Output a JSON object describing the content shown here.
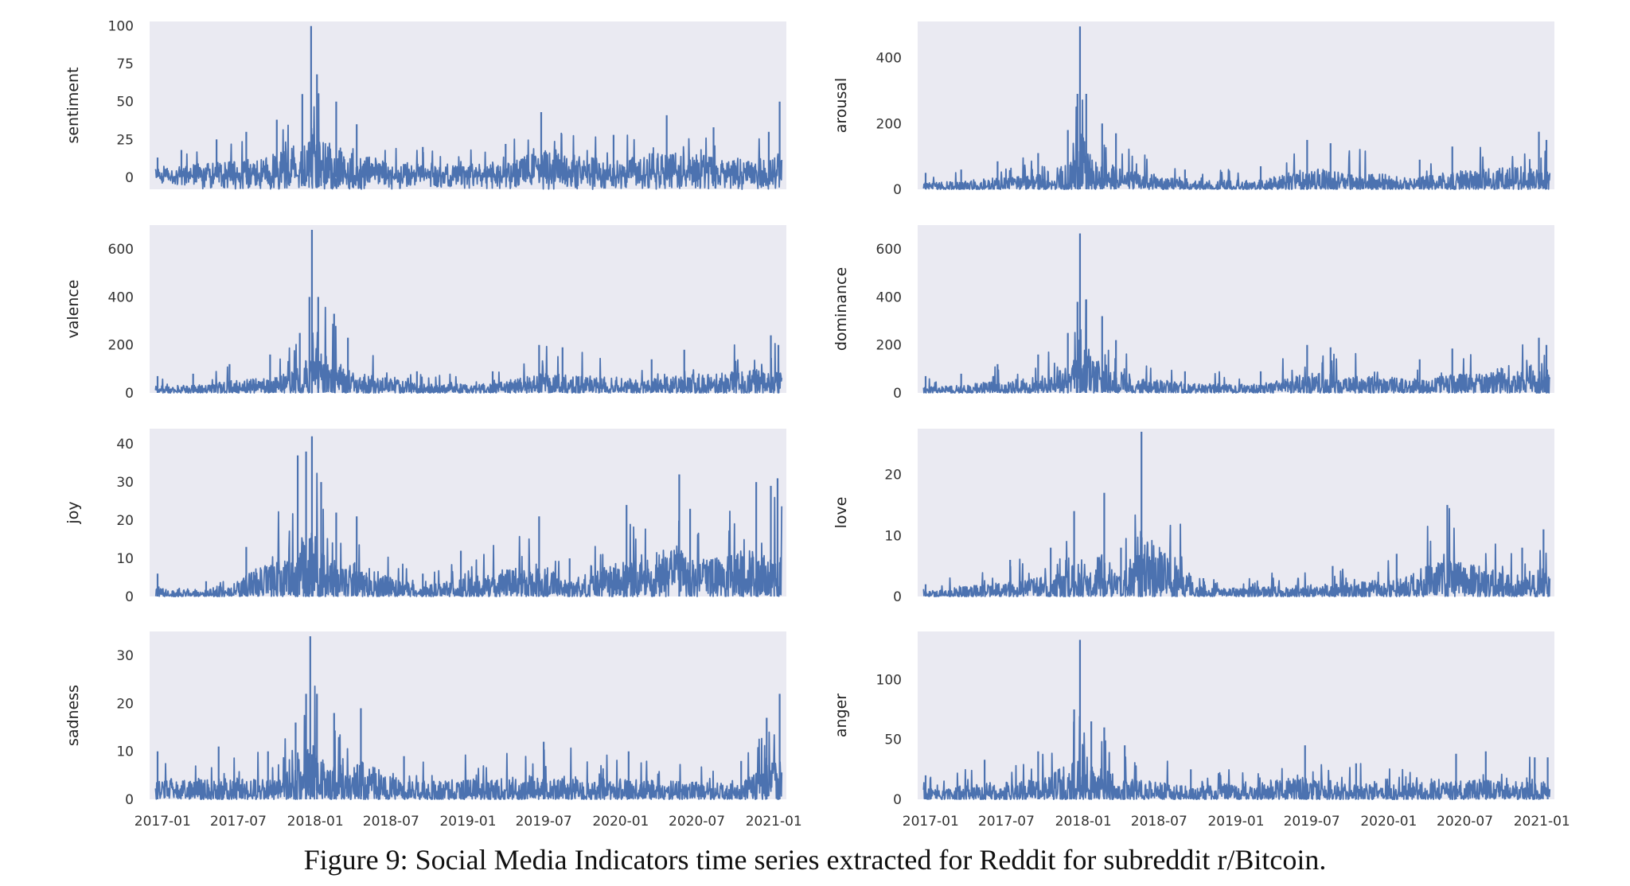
{
  "caption": "Figure 9: Social Media Indicators time series extracted for Reddit for subreddit r/Bitcoin.",
  "colors": {
    "series": "#4c72b0",
    "panel_bg": "#eaeaf2"
  },
  "x_axis": {
    "range": [
      "2016-12-01",
      "2021-01-31"
    ],
    "data_range": [
      "2016-12-15",
      "2021-01-20"
    ],
    "ticks": [
      "2017-01",
      "2017-07",
      "2018-01",
      "2018-07",
      "2019-01",
      "2019-07",
      "2020-01",
      "2020-07",
      "2021-01"
    ],
    "tick_dates": [
      "2017-01-01",
      "2017-07-01",
      "2018-01-01",
      "2018-07-01",
      "2019-01-01",
      "2019-07-01",
      "2020-01-01",
      "2020-07-01",
      "2021-01-01"
    ]
  },
  "chart_data": [
    {
      "type": "line",
      "ylabel": "sentiment",
      "ylim": [
        -8,
        103
      ],
      "yticks": [
        0,
        25,
        50,
        75,
        100
      ],
      "grid": false,
      "legend": false,
      "series": [
        {
          "name": "",
          "points": [
            {
              "x": "2016-12-20",
              "y": 13
            },
            {
              "x": "2017-02-15",
              "y": 18
            },
            {
              "x": "2017-05-10",
              "y": 25
            },
            {
              "x": "2017-07-20",
              "y": 30
            },
            {
              "x": "2017-10-01",
              "y": 38
            },
            {
              "x": "2017-12-01",
              "y": 55
            },
            {
              "x": "2017-12-22",
              "y": 100
            },
            {
              "x": "2018-01-05",
              "y": 68
            },
            {
              "x": "2018-02-20",
              "y": 50
            },
            {
              "x": "2018-04-10",
              "y": 35
            },
            {
              "x": "2018-09-15",
              "y": 20
            },
            {
              "x": "2019-04-01",
              "y": 22
            },
            {
              "x": "2019-06-25",
              "y": 43
            },
            {
              "x": "2019-12-15",
              "y": 28
            },
            {
              "x": "2020-04-20",
              "y": 41
            },
            {
              "x": "2020-08-10",
              "y": 33
            },
            {
              "x": "2020-12-20",
              "y": 30
            },
            {
              "x": "2021-01-15",
              "y": 50
            }
          ]
        }
      ]
    },
    {
      "type": "line",
      "ylabel": "arousal",
      "ylim": [
        0,
        510
      ],
      "yticks": [
        0,
        200,
        400
      ],
      "grid": false,
      "legend": false,
      "series": [
        {
          "name": "",
          "points": [
            {
              "x": "2016-12-20",
              "y": 50
            },
            {
              "x": "2017-03-15",
              "y": 60
            },
            {
              "x": "2017-06-10",
              "y": 85
            },
            {
              "x": "2017-09-15",
              "y": 110
            },
            {
              "x": "2017-11-25",
              "y": 180
            },
            {
              "x": "2017-12-18",
              "y": 290
            },
            {
              "x": "2017-12-24",
              "y": 495
            },
            {
              "x": "2018-01-08",
              "y": 290
            },
            {
              "x": "2018-02-15",
              "y": 200
            },
            {
              "x": "2018-03-20",
              "y": 170
            },
            {
              "x": "2018-09-01",
              "y": 60
            },
            {
              "x": "2019-03-01",
              "y": 70
            },
            {
              "x": "2019-06-20",
              "y": 150
            },
            {
              "x": "2019-08-15",
              "y": 140
            },
            {
              "x": "2020-03-15",
              "y": 90
            },
            {
              "x": "2020-06-01",
              "y": 130
            },
            {
              "x": "2020-12-25",
              "y": 175
            },
            {
              "x": "2021-01-12",
              "y": 150
            }
          ]
        }
      ]
    },
    {
      "type": "line",
      "ylabel": "valence",
      "ylim": [
        0,
        700
      ],
      "yticks": [
        0,
        200,
        400,
        600
      ],
      "grid": false,
      "legend": false,
      "series": [
        {
          "name": "",
          "points": [
            {
              "x": "2016-12-20",
              "y": 70
            },
            {
              "x": "2017-03-15",
              "y": 80
            },
            {
              "x": "2017-06-10",
              "y": 120
            },
            {
              "x": "2017-09-15",
              "y": 160
            },
            {
              "x": "2017-11-25",
              "y": 250
            },
            {
              "x": "2017-12-18",
              "y": 400
            },
            {
              "x": "2017-12-24",
              "y": 680
            },
            {
              "x": "2018-01-08",
              "y": 400
            },
            {
              "x": "2018-02-15",
              "y": 330
            },
            {
              "x": "2018-03-20",
              "y": 230
            },
            {
              "x": "2018-09-01",
              "y": 90
            },
            {
              "x": "2019-03-01",
              "y": 90
            },
            {
              "x": "2019-06-20",
              "y": 200
            },
            {
              "x": "2019-08-15",
              "y": 190
            },
            {
              "x": "2020-03-15",
              "y": 140
            },
            {
              "x": "2020-06-01",
              "y": 180
            },
            {
              "x": "2020-12-25",
              "y": 240
            },
            {
              "x": "2021-01-12",
              "y": 200
            }
          ]
        }
      ]
    },
    {
      "type": "line",
      "ylabel": "dominance",
      "ylim": [
        0,
        700
      ],
      "yticks": [
        0,
        200,
        400,
        600
      ],
      "grid": false,
      "legend": false,
      "series": [
        {
          "name": "",
          "points": [
            {
              "x": "2016-12-20",
              "y": 70
            },
            {
              "x": "2017-03-15",
              "y": 80
            },
            {
              "x": "2017-06-10",
              "y": 120
            },
            {
              "x": "2017-09-15",
              "y": 160
            },
            {
              "x": "2017-11-25",
              "y": 250
            },
            {
              "x": "2017-12-18",
              "y": 380
            },
            {
              "x": "2017-12-24",
              "y": 665
            },
            {
              "x": "2018-01-08",
              "y": 390
            },
            {
              "x": "2018-02-15",
              "y": 320
            },
            {
              "x": "2018-03-20",
              "y": 220
            },
            {
              "x": "2018-09-01",
              "y": 90
            },
            {
              "x": "2019-03-01",
              "y": 90
            },
            {
              "x": "2019-06-20",
              "y": 200
            },
            {
              "x": "2019-08-15",
              "y": 190
            },
            {
              "x": "2020-03-15",
              "y": 140
            },
            {
              "x": "2020-06-01",
              "y": 185
            },
            {
              "x": "2020-12-25",
              "y": 230
            },
            {
              "x": "2021-01-12",
              "y": 200
            }
          ]
        }
      ]
    },
    {
      "type": "line",
      "ylabel": "joy",
      "ylim": [
        0,
        44
      ],
      "yticks": [
        0,
        10,
        20,
        30,
        40
      ],
      "grid": false,
      "legend": false,
      "series": [
        {
          "name": "",
          "points": [
            {
              "x": "2016-12-20",
              "y": 6
            },
            {
              "x": "2017-04-15",
              "y": 4
            },
            {
              "x": "2017-07-20",
              "y": 13
            },
            {
              "x": "2017-11-20",
              "y": 37
            },
            {
              "x": "2017-12-10",
              "y": 38
            },
            {
              "x": "2017-12-24",
              "y": 42
            },
            {
              "x": "2018-01-15",
              "y": 30
            },
            {
              "x": "2018-02-20",
              "y": 22
            },
            {
              "x": "2018-04-10",
              "y": 21
            },
            {
              "x": "2018-09-15",
              "y": 6
            },
            {
              "x": "2018-12-15",
              "y": 12
            },
            {
              "x": "2019-06-20",
              "y": 21
            },
            {
              "x": "2019-09-01",
              "y": 10
            },
            {
              "x": "2020-01-15",
              "y": 24
            },
            {
              "x": "2020-05-20",
              "y": 32
            },
            {
              "x": "2020-06-15",
              "y": 23
            },
            {
              "x": "2020-11-20",
              "y": 30
            },
            {
              "x": "2020-12-25",
              "y": 29
            },
            {
              "x": "2021-01-10",
              "y": 31
            }
          ]
        }
      ]
    },
    {
      "type": "line",
      "ylabel": "love",
      "ylim": [
        0,
        27.5
      ],
      "yticks": [
        0,
        10,
        20
      ],
      "grid": false,
      "legend": false,
      "series": [
        {
          "name": "",
          "points": [
            {
              "x": "2016-12-20",
              "y": 2
            },
            {
              "x": "2017-07-10",
              "y": 6
            },
            {
              "x": "2017-10-15",
              "y": 8
            },
            {
              "x": "2017-12-10",
              "y": 14
            },
            {
              "x": "2018-02-20",
              "y": 17
            },
            {
              "x": "2018-04-01",
              "y": 8
            },
            {
              "x": "2018-05-20",
              "y": 27
            },
            {
              "x": "2018-10-15",
              "y": 3
            },
            {
              "x": "2019-08-20",
              "y": 5
            },
            {
              "x": "2020-01-20",
              "y": 7
            },
            {
              "x": "2020-05-20",
              "y": 15
            },
            {
              "x": "2020-11-15",
              "y": 8
            },
            {
              "x": "2021-01-05",
              "y": 11
            }
          ]
        }
      ]
    },
    {
      "type": "line",
      "ylabel": "sadness",
      "ylim": [
        0,
        35
      ],
      "yticks": [
        0,
        10,
        20,
        30
      ],
      "grid": false,
      "legend": false,
      "series": [
        {
          "name": "",
          "points": [
            {
              "x": "2016-12-20",
              "y": 10
            },
            {
              "x": "2017-05-15",
              "y": 11
            },
            {
              "x": "2017-09-10",
              "y": 10
            },
            {
              "x": "2017-11-15",
              "y": 16
            },
            {
              "x": "2017-12-10",
              "y": 22
            },
            {
              "x": "2017-12-20",
              "y": 34
            },
            {
              "x": "2018-01-05",
              "y": 22
            },
            {
              "x": "2018-02-15",
              "y": 18
            },
            {
              "x": "2018-04-20",
              "y": 19
            },
            {
              "x": "2018-08-01",
              "y": 9
            },
            {
              "x": "2019-07-01",
              "y": 12
            },
            {
              "x": "2020-01-20",
              "y": 10
            },
            {
              "x": "2020-10-15",
              "y": 8
            },
            {
              "x": "2020-12-15",
              "y": 17
            },
            {
              "x": "2021-01-15",
              "y": 22
            }
          ]
        }
      ]
    },
    {
      "type": "line",
      "ylabel": "anger",
      "ylim": [
        0,
        140
      ],
      "yticks": [
        0,
        50,
        100
      ],
      "grid": false,
      "legend": false,
      "series": [
        {
          "name": "",
          "points": [
            {
              "x": "2016-12-20",
              "y": 20
            },
            {
              "x": "2017-05-10",
              "y": 33
            },
            {
              "x": "2017-09-15",
              "y": 40
            },
            {
              "x": "2017-12-10",
              "y": 75
            },
            {
              "x": "2017-12-24",
              "y": 133
            },
            {
              "x": "2018-01-20",
              "y": 65
            },
            {
              "x": "2018-02-20",
              "y": 60
            },
            {
              "x": "2018-04-10",
              "y": 45
            },
            {
              "x": "2018-09-15",
              "y": 25
            },
            {
              "x": "2019-06-15",
              "y": 45
            },
            {
              "x": "2019-10-15",
              "y": 30
            },
            {
              "x": "2020-06-10",
              "y": 38
            },
            {
              "x": "2020-08-20",
              "y": 40
            },
            {
              "x": "2020-12-15",
              "y": 35
            },
            {
              "x": "2021-01-15",
              "y": 35
            }
          ]
        }
      ]
    }
  ]
}
